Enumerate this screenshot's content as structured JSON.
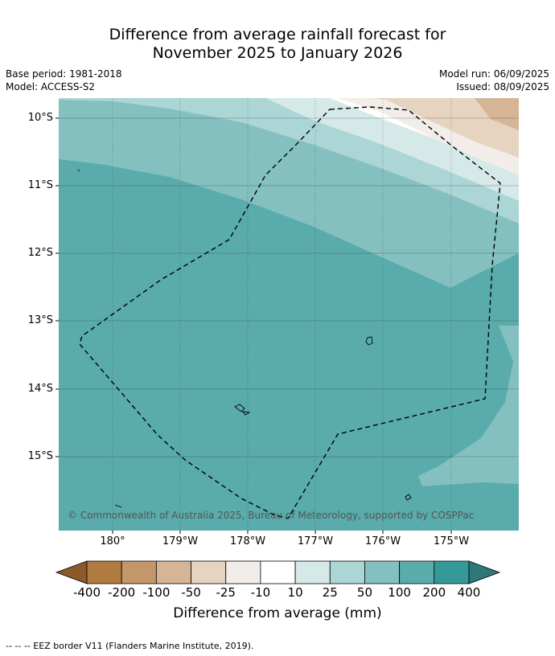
{
  "title": {
    "line1": "Difference from average rainfall forecast for",
    "line2": "November 2025 to January 2026"
  },
  "meta": {
    "base_period": "Base period: 1981-2018",
    "model": "Model: ACCESS-S2",
    "model_run": "Model run: 06/09/2025",
    "issued": "Issued: 08/09/2025"
  },
  "map": {
    "lat_labels": [
      "10°S",
      "11°S",
      "12°S",
      "13°S",
      "14°S",
      "15°S"
    ],
    "lon_labels": [
      "180°",
      "179°W",
      "178°W",
      "177°W",
      "176°W",
      "175°W"
    ],
    "copyright": "© Commonwealth of Australia 2025, Bureau of Meteorology, supported by COSPPac"
  },
  "colorbar": {
    "labels": [
      "-400",
      "-200",
      "-100",
      "-50",
      "-25",
      "-10",
      "10",
      "25",
      "50",
      "100",
      "200",
      "400"
    ],
    "colors": [
      "#8c5a2a",
      "#b07a40",
      "#c4976a",
      "#d6b596",
      "#e6d3c0",
      "#f2ede8",
      "#ffffff",
      "#d5e9e8",
      "#acd5d5",
      "#85c0c0",
      "#5aabab",
      "#349a99",
      "#2f7878"
    ],
    "xlabel": "Difference from average (mm)"
  },
  "footer": "--  --  -- EEZ border V11 (Flanders Marine Institute, 2019)."
}
